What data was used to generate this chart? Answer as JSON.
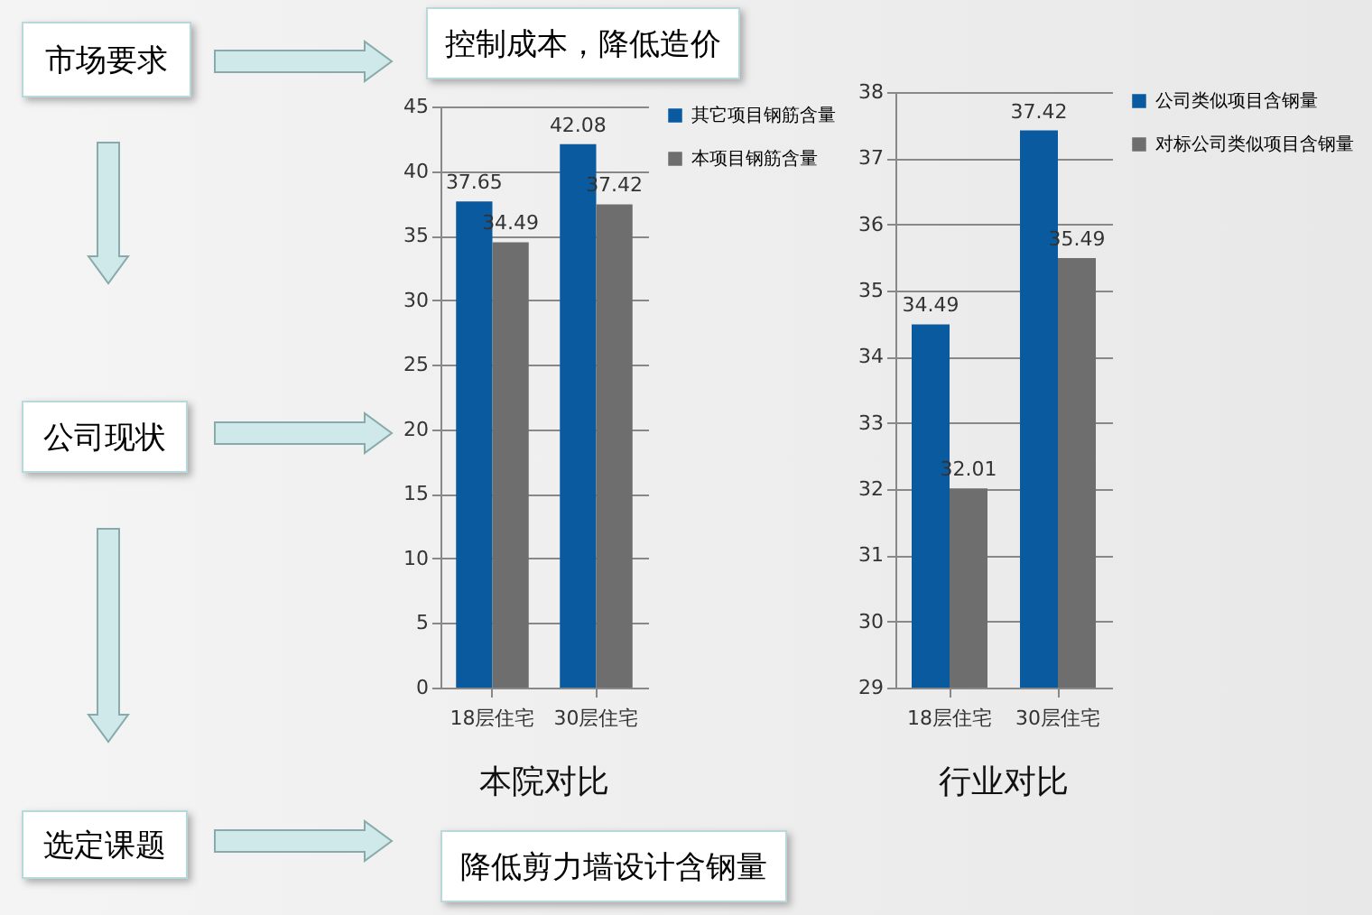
{
  "chart_data": [
    {
      "type": "other",
      "annotations": [
        "市场要求",
        "控制成本，降低造价",
        "公司现状",
        "选定课题",
        "降低剪力墙设计含钢量"
      ]
    },
    {
      "type": "bar",
      "title": "本院对比",
      "categories": [
        "18层住宅",
        "30层住宅"
      ],
      "series": [
        {
          "name": "其它项目钢筋含量",
          "color": "#0a5aa0",
          "values": [
            37.65,
            42.08
          ]
        },
        {
          "name": "本项目钢筋含量",
          "color": "#6e6e6e",
          "values": [
            34.49,
            37.42
          ]
        }
      ],
      "ylim": [
        0,
        45
      ],
      "yticks": [
        0,
        5,
        10,
        15,
        20,
        25,
        30,
        35,
        40,
        45
      ],
      "grid": "y",
      "legend": "right",
      "data_labels": true
    },
    {
      "type": "bar",
      "title": "行业对比",
      "categories": [
        "18层住宅",
        "30层住宅"
      ],
      "series": [
        {
          "name": "公司类似项目含钢量",
          "color": "#0a5aa0",
          "values": [
            34.49,
            37.42
          ]
        },
        {
          "name": "对标公司类似项目含钢量",
          "color": "#6e6e6e",
          "values": [
            32.01,
            35.49
          ]
        }
      ],
      "ylim": [
        29,
        38
      ],
      "yticks": [
        29,
        30,
        31,
        32,
        33,
        34,
        35,
        36,
        37,
        38
      ],
      "grid": "y",
      "legend": "right",
      "data_labels": true
    }
  ]
}
